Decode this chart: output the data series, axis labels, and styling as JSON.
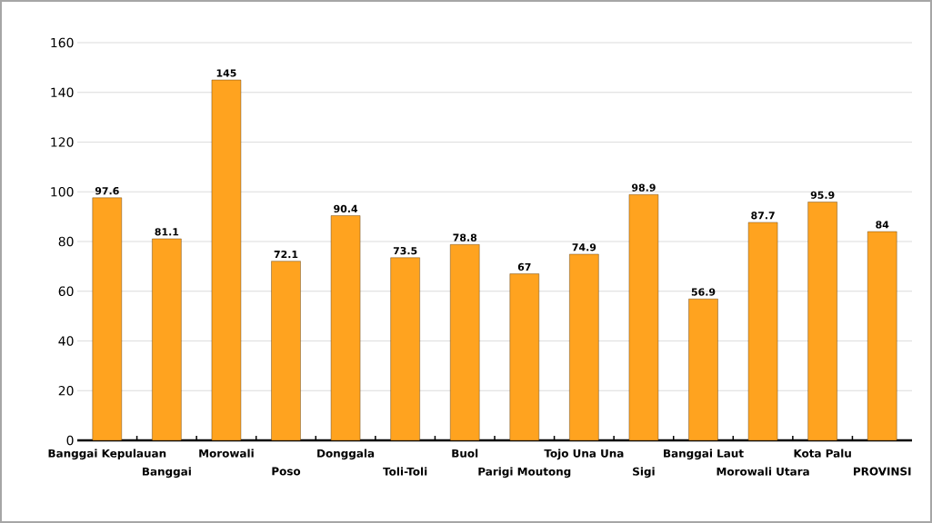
{
  "chart_data": {
    "type": "bar",
    "categories": [
      "Banggai Kepulauan",
      "Banggai",
      "Morowali",
      "Poso",
      "Donggala",
      "Toli-Toli",
      "Buol",
      "Parigi Moutong",
      "Tojo Una Una",
      "Sigi",
      "Banggai Laut",
      "Morowali Utara",
      "Kota Palu",
      "PROVINSI"
    ],
    "values": [
      97.6,
      81.1,
      145,
      72.1,
      90.4,
      73.5,
      78.8,
      67,
      74.9,
      98.9,
      56.9,
      87.7,
      95.9,
      84
    ],
    "color": "#ffa31f",
    "ylim": [
      0,
      160
    ],
    "yticks": [
      0,
      20,
      40,
      60,
      80,
      100,
      120,
      140,
      160
    ],
    "grid": "y",
    "data_labels": true
  }
}
